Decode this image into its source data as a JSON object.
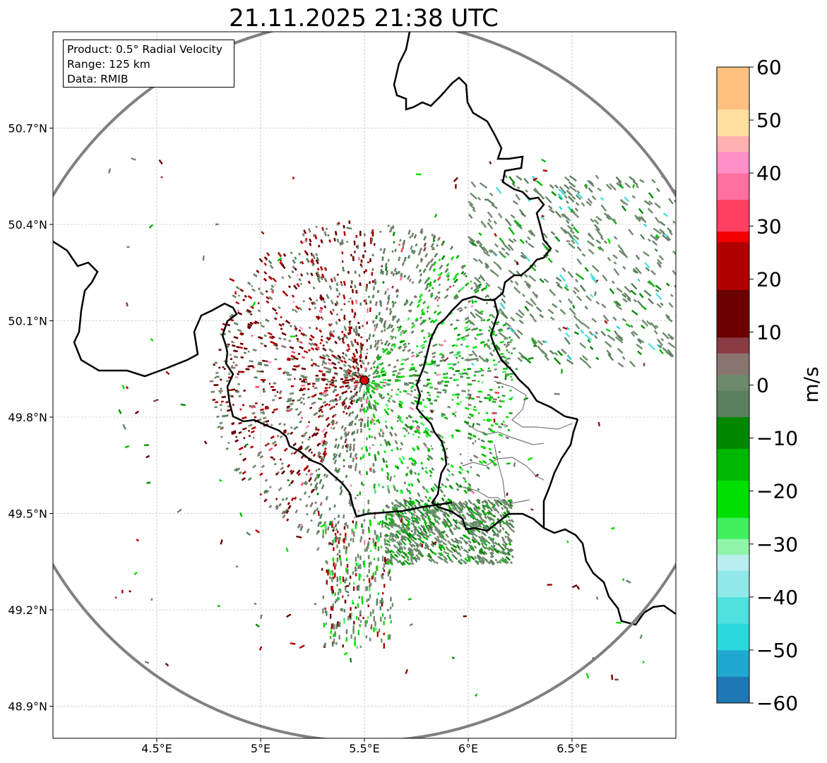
{
  "title": "21.11.2025 21:38 UTC",
  "info": {
    "product": "Product: 0.5° Radial Velocity",
    "range": "Range: 125 km",
    "data": "Data: RMIB"
  },
  "map": {
    "lon_range": [
      4.0,
      7.0
    ],
    "lat_range": [
      48.8,
      51.0
    ],
    "radar_site": {
      "lon": 5.5,
      "lat": 49.915,
      "color": "#e00000"
    },
    "range_km": 125,
    "x_ticks": [
      {
        "lon": 4.5,
        "label": "4.5°E"
      },
      {
        "lon": 5.0,
        "label": "5°E"
      },
      {
        "lon": 5.5,
        "label": "5.5°E"
      },
      {
        "lon": 6.0,
        "label": "6°E"
      },
      {
        "lon": 6.5,
        "label": "6.5°E"
      }
    ],
    "y_ticks": [
      {
        "lat": 50.7,
        "label": "50.7°N"
      },
      {
        "lat": 50.4,
        "label": "50.4°N"
      },
      {
        "lat": 50.1,
        "label": "50.1°N"
      },
      {
        "lat": 49.8,
        "label": "49.8°N"
      },
      {
        "lat": 49.5,
        "label": "49.5°N"
      },
      {
        "lat": 49.2,
        "label": "49.2°N"
      },
      {
        "lat": 48.9,
        "label": "48.9°N"
      }
    ]
  },
  "colorbar": {
    "unit": "m/s",
    "min": -60,
    "max": 60,
    "ticks": [
      {
        "value": 60,
        "label": "60"
      },
      {
        "value": 50,
        "label": "50"
      },
      {
        "value": 40,
        "label": "40"
      },
      {
        "value": 30,
        "label": "30"
      },
      {
        "value": 20,
        "label": "20"
      },
      {
        "value": 10,
        "label": "10"
      },
      {
        "value": 0,
        "label": "0"
      },
      {
        "value": -10,
        "label": "−10"
      },
      {
        "value": -20,
        "label": "−20"
      },
      {
        "value": -30,
        "label": "−30"
      },
      {
        "value": -40,
        "label": "−40"
      },
      {
        "value": -50,
        "label": "−50"
      },
      {
        "value": -60,
        "label": "−60"
      }
    ],
    "color_stops": [
      {
        "value": -60,
        "color": "#1f77b4"
      },
      {
        "value": -55,
        "color": "#20a8d0"
      },
      {
        "value": -50,
        "color": "#2ad9dd"
      },
      {
        "value": -45,
        "color": "#50e0e0"
      },
      {
        "value": -40,
        "color": "#90e8e8"
      },
      {
        "value": -35,
        "color": "#b8eef0"
      },
      {
        "value": -32,
        "color": "#90f5a8"
      },
      {
        "value": -29,
        "color": "#40f060"
      },
      {
        "value": -25,
        "color": "#00e000"
      },
      {
        "value": -18,
        "color": "#00b800"
      },
      {
        "value": -12,
        "color": "#008800"
      },
      {
        "value": -6,
        "color": "#5a8060"
      },
      {
        "value": -1,
        "color": "#6e8a6c"
      },
      {
        "value": 2,
        "color": "#8a7470"
      },
      {
        "value": 6,
        "color": "#8a3c44"
      },
      {
        "value": 9,
        "color": "#6a0000"
      },
      {
        "value": 18,
        "color": "#b00000"
      },
      {
        "value": 27,
        "color": "#f00000"
      },
      {
        "value": 29,
        "color": "#ff4060"
      },
      {
        "value": 35,
        "color": "#ff70a0"
      },
      {
        "value": 40,
        "color": "#ff90c8"
      },
      {
        "value": 44,
        "color": "#ffb0b0"
      },
      {
        "value": 47,
        "color": "#ffe0a0"
      },
      {
        "value": 52,
        "color": "#ffc080"
      },
      {
        "value": 60,
        "color": "#ff9a50"
      }
    ]
  }
}
